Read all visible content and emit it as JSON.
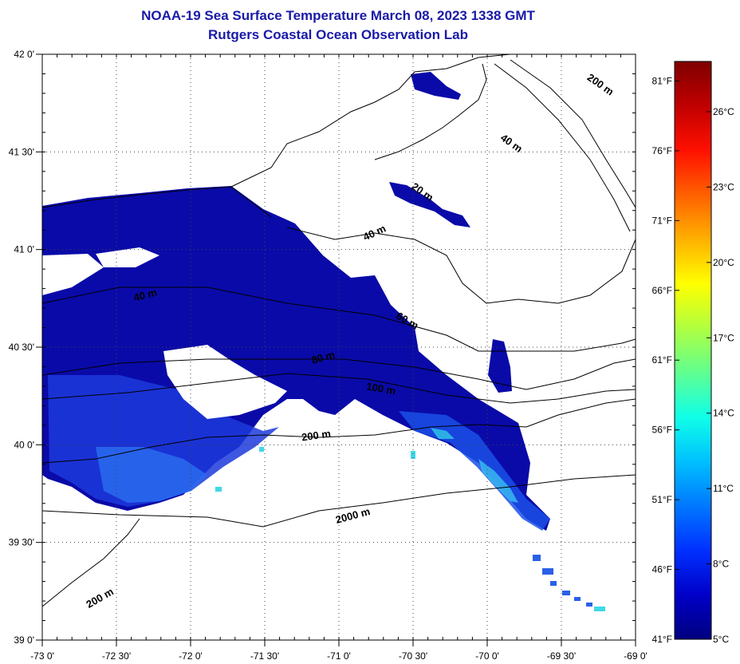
{
  "title": "NOAA-19 Sea Surface Temperature March 08, 2023 1338 GMT",
  "subtitle": "Rutgers Coastal Ocean Observation Lab",
  "map": {
    "lon_range": [
      -73,
      -69
    ],
    "lat_range": [
      39,
      42
    ],
    "lon_ticks": [
      {
        "value": -73,
        "label": "-73 0'"
      },
      {
        "value": -72.5,
        "label": "-72 30'"
      },
      {
        "value": -72,
        "label": "-72 0'"
      },
      {
        "value": -71.5,
        "label": "-71 30'"
      },
      {
        "value": -71,
        "label": "-71 0'"
      },
      {
        "value": -70.5,
        "label": "-70 30'"
      },
      {
        "value": -70,
        "label": "-70 0'"
      },
      {
        "value": -69.5,
        "label": "-69 30'"
      },
      {
        "value": -69,
        "label": "-69 0'"
      }
    ],
    "lat_ticks": [
      {
        "value": 42,
        "label": "42 0'"
      },
      {
        "value": 41.5,
        "label": "41 30'"
      },
      {
        "value": 41,
        "label": "41 0'"
      },
      {
        "value": 40.5,
        "label": "40 30'"
      },
      {
        "value": 40,
        "label": "40 0'"
      },
      {
        "value": 39.5,
        "label": "39 30'"
      },
      {
        "value": 39,
        "label": "39 0'"
      }
    ],
    "grid": "dotted",
    "contour_labels": [
      {
        "text": "200 m",
        "lon": -69.25,
        "lat": 41.83,
        "angle": 35
      },
      {
        "text": "40 m",
        "lon": -69.85,
        "lat": 41.53,
        "angle": 35
      },
      {
        "text": "20 m",
        "lon": -70.45,
        "lat": 41.28,
        "angle": 35
      },
      {
        "text": "40 m",
        "lon": -70.75,
        "lat": 41.07,
        "angle": -25
      },
      {
        "text": "40 m",
        "lon": -72.3,
        "lat": 40.75,
        "angle": -15
      },
      {
        "text": "60 m",
        "lon": -70.55,
        "lat": 40.62,
        "angle": 30
      },
      {
        "text": "80 m",
        "lon": -71.1,
        "lat": 40.43,
        "angle": -15
      },
      {
        "text": "100 m",
        "lon": -70.72,
        "lat": 40.27,
        "angle": 10
      },
      {
        "text": "200 m",
        "lon": -71.15,
        "lat": 40.03,
        "angle": -8
      },
      {
        "text": "2000 m",
        "lon": -70.9,
        "lat": 39.62,
        "angle": -15
      },
      {
        "text": "200 m",
        "lon": -72.6,
        "lat": 39.2,
        "angle": -30
      }
    ]
  },
  "colorbar": {
    "colors": [
      "#00007f",
      "#0000c8",
      "#0030ff",
      "#0078ff",
      "#00c0ff",
      "#10ffe8",
      "#60ff90",
      "#b0ff40",
      "#ffff00",
      "#ffb000",
      "#ff6000",
      "#ff1000",
      "#c00000",
      "#7f0000"
    ],
    "celsius": [
      "5°C",
      "8°C",
      "11°C",
      "14°C",
      "17°C",
      "20°C",
      "23°C",
      "26°C"
    ],
    "fahrenheit": [
      "41°F",
      "46°F",
      "51°F",
      "56°F",
      "61°F",
      "66°F",
      "71°F",
      "76°F",
      "81°F"
    ],
    "celsius_range": [
      5,
      28
    ]
  }
}
